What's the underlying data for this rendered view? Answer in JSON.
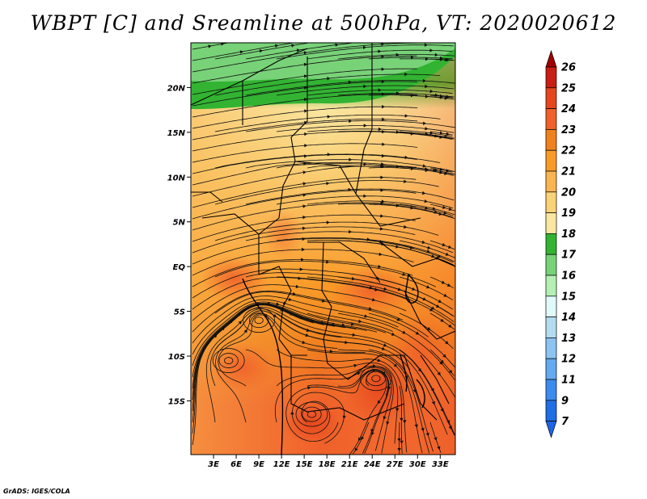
{
  "title": "WBPT [C] and Sreamline at 500hPa, VT: 2020020612",
  "credit": "GrADS: IGES/COLA",
  "map": {
    "lat_range": [
      -21,
      25
    ],
    "lon_range": [
      0,
      35
    ],
    "lat_ticks": [
      {
        "value": 20,
        "label": "20N"
      },
      {
        "value": 15,
        "label": "15N"
      },
      {
        "value": 10,
        "label": "10N"
      },
      {
        "value": 5,
        "label": "5N"
      },
      {
        "value": 0,
        "label": "EQ"
      },
      {
        "value": -5,
        "label": "5S"
      },
      {
        "value": -10,
        "label": "10S"
      },
      {
        "value": -15,
        "label": "15S"
      }
    ],
    "lon_ticks": [
      {
        "value": 3,
        "label": "3E"
      },
      {
        "value": 6,
        "label": "6E"
      },
      {
        "value": 9,
        "label": "9E"
      },
      {
        "value": 12,
        "label": "12E"
      },
      {
        "value": 15,
        "label": "15E"
      },
      {
        "value": 18,
        "label": "18E"
      },
      {
        "value": 21,
        "label": "21E"
      },
      {
        "value": 24,
        "label": "24E"
      },
      {
        "value": 27,
        "label": "27E"
      },
      {
        "value": 30,
        "label": "30E"
      },
      {
        "value": 33,
        "label": "33E"
      }
    ],
    "vortices": [
      {
        "lon": 9,
        "lat": -6
      },
      {
        "lon": 5,
        "lat": -10.5
      },
      {
        "lon": 24.5,
        "lat": -12.5
      },
      {
        "lon": 16,
        "lat": -16.5
      }
    ]
  },
  "colorbar": {
    "levels": [
      {
        "label": "26",
        "color": "#a00000"
      },
      {
        "label": "25",
        "color": "#c81e14"
      },
      {
        "label": "24",
        "color": "#e6461e"
      },
      {
        "label": "23",
        "color": "#f0602a"
      },
      {
        "label": "22",
        "color": "#f0821e"
      },
      {
        "label": "21",
        "color": "#fa9b28"
      },
      {
        "label": "20",
        "color": "#fab450"
      },
      {
        "label": "19",
        "color": "#fad278"
      },
      {
        "label": "18",
        "color": "#fae6a0"
      },
      {
        "label": "17",
        "color": "#32b432"
      },
      {
        "label": "16",
        "color": "#78d278"
      },
      {
        "label": "15",
        "color": "#b4f0b4"
      },
      {
        "label": "14",
        "color": "#e0fafa"
      },
      {
        "label": "13",
        "color": "#b4dcf0"
      },
      {
        "label": "12",
        "color": "#8cc3f0"
      },
      {
        "label": "11",
        "color": "#64aaf0"
      },
      {
        "label": "9",
        "color": "#3c8cf0"
      },
      {
        "label": "7",
        "color": "#1e6ee6"
      }
    ],
    "bottom_color": "#1e64e6"
  }
}
